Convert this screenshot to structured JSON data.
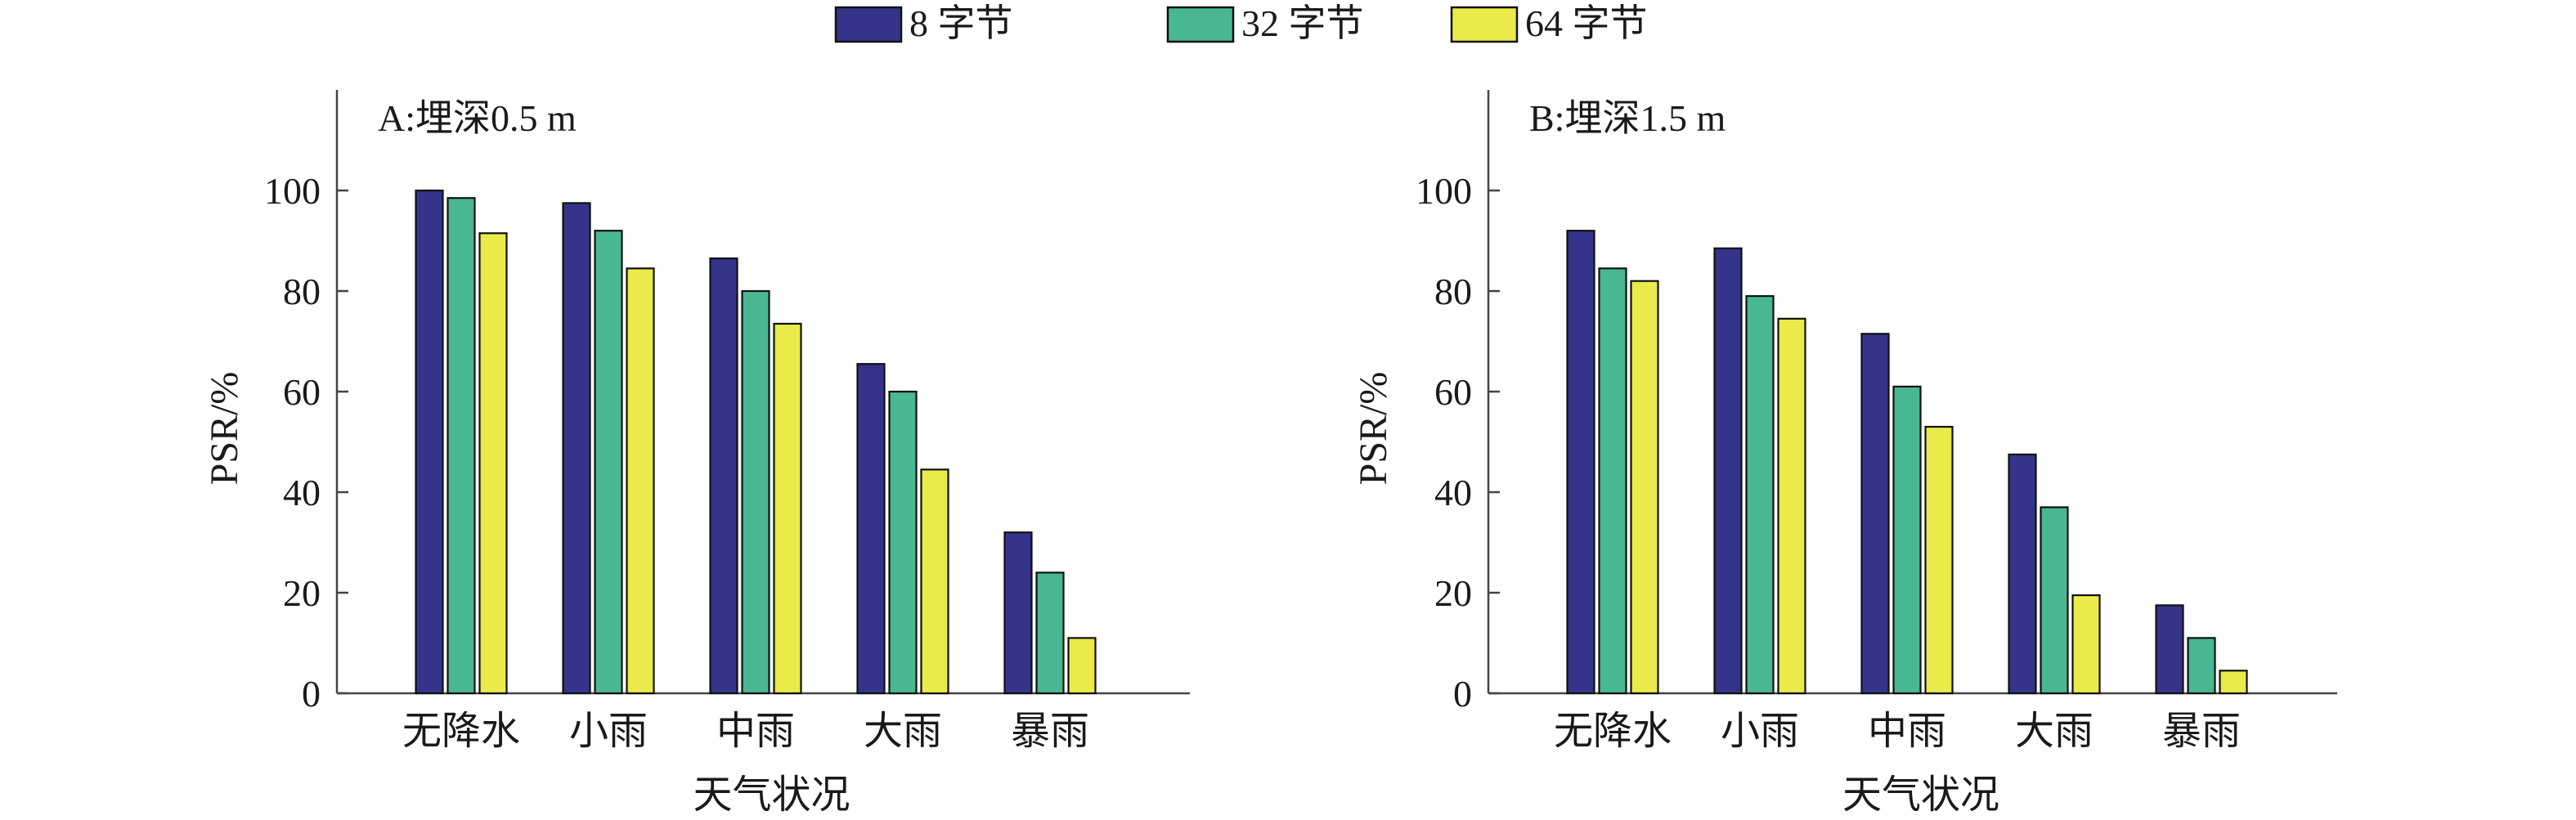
{
  "legend": {
    "position": "top-center",
    "items": [
      {
        "label": "8 字节",
        "color": "#34348a"
      },
      {
        "label": "32 字节",
        "color": "#49b892"
      },
      {
        "label": "64 字节",
        "color": "#eaea4a"
      }
    ]
  },
  "chart_data": [
    {
      "type": "bar",
      "title": "A:埋深0.5 m",
      "xlabel": "天气状况",
      "ylabel": "PSR/%",
      "categories": [
        "无降水",
        "小雨",
        "中雨",
        "大雨",
        "暴雨"
      ],
      "ylim": [
        0,
        120
      ],
      "yticks": [
        0,
        20,
        40,
        60,
        80,
        100
      ],
      "grid": false,
      "series": [
        {
          "name": "8 字节",
          "color": "#34348a",
          "values": [
            100,
            97.5,
            86.5,
            65.5,
            32
          ]
        },
        {
          "name": "32 字节",
          "color": "#49b892",
          "values": [
            98.5,
            92,
            80,
            60,
            24
          ]
        },
        {
          "name": "64 字节",
          "color": "#eaea4a",
          "values": [
            91.5,
            84.5,
            73.5,
            44.5,
            11
          ]
        }
      ]
    },
    {
      "type": "bar",
      "title": "B:埋深1.5 m",
      "xlabel": "天气状况",
      "ylabel": "PSR/%",
      "categories": [
        "无降水",
        "小雨",
        "中雨",
        "大雨",
        "暴雨"
      ],
      "ylim": [
        0,
        120
      ],
      "yticks": [
        0,
        20,
        40,
        60,
        80,
        100
      ],
      "grid": false,
      "series": [
        {
          "name": "8 字节",
          "color": "#34348a",
          "values": [
            92,
            88.5,
            71.5,
            47.5,
            17.5
          ]
        },
        {
          "name": "32 字节",
          "color": "#49b892",
          "values": [
            84.5,
            79,
            61,
            37,
            11
          ]
        },
        {
          "name": "64 字节",
          "color": "#eaea4a",
          "values": [
            82,
            74.5,
            53,
            19.5,
            4.5
          ]
        }
      ]
    }
  ]
}
